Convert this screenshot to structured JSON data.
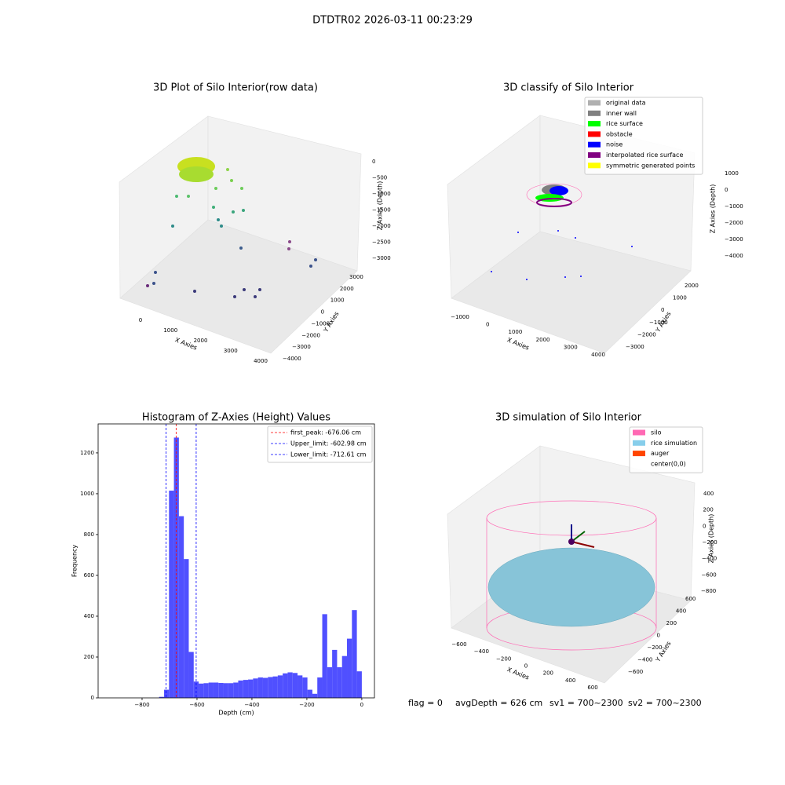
{
  "title": "DTDTR02 2026-03-11 00:23:29",
  "chart_data": [
    {
      "type": "scatter3d",
      "title": "3D Plot of Silo Interior(row data)",
      "xlabel": "X Axies",
      "ylabel": "Y Axies",
      "zlabel": "Z Axies (Depth)",
      "xticks": [
        0,
        1000,
        2000,
        3000,
        4000
      ],
      "yticks": [
        {
          "value": -4000,
          "label": "−4000"
        },
        {
          "value": -3000,
          "label": "−3000"
        },
        {
          "value": -2000,
          "label": "−2000"
        },
        {
          "value": -1000,
          "label": "−1000"
        },
        0,
        1000,
        2000,
        3000
      ],
      "zticks": [
        {
          "value": -3000,
          "label": "−3000"
        },
        {
          "value": -2500,
          "label": "−2500"
        },
        {
          "value": -2000,
          "label": "−2000"
        },
        {
          "value": -1500,
          "label": "−1500"
        },
        {
          "value": -1000,
          "label": "−1000"
        },
        {
          "value": -500,
          "label": "−500"
        },
        0
      ]
    },
    {
      "type": "scatter3d",
      "title": "3D classify of Silo Interior",
      "xlabel": "X Axies",
      "ylabel": "Y Axies",
      "zlabel": "Z Axies (Depth)",
      "xticks": [
        {
          "value": -1000,
          "label": "−1000"
        },
        0,
        1000,
        2000,
        3000,
        4000
      ],
      "yticks": [
        {
          "value": -3000,
          "label": "−3000"
        },
        {
          "value": -2000,
          "label": "−2000"
        },
        {
          "value": -1000,
          "label": "−1000"
        },
        0,
        1000,
        2000
      ],
      "zticks": [
        {
          "value": -4000,
          "label": "−4000"
        },
        {
          "value": -3000,
          "label": "−3000"
        },
        {
          "value": -2000,
          "label": "−2000"
        },
        {
          "value": -1000,
          "label": "−1000"
        },
        0,
        1000
      ],
      "legend": [
        {
          "name": "original data",
          "color": "#b0b0b0"
        },
        {
          "name": "inner wall",
          "color": "#808080"
        },
        {
          "name": "rice surface",
          "color": "#00ff00"
        },
        {
          "name": "obstacle",
          "color": "#ff0000"
        },
        {
          "name": "noise",
          "color": "#0000ff"
        },
        {
          "name": "interpolated rice surface",
          "color": "#800080"
        },
        {
          "name": "symmetric generated points",
          "color": "#ffff00"
        }
      ]
    },
    {
      "type": "histogram",
      "title": "Histogram of Z-Axies (Height) Values",
      "xlabel": "Depth (cm)",
      "ylabel": "Frequency",
      "color": "#5050ff",
      "bins": [
        -738,
        -720,
        -702,
        -684,
        -666,
        -648,
        -630,
        -612,
        -594,
        -576,
        -558,
        -540,
        -522,
        -504,
        -486,
        -468,
        -450,
        -432,
        -414,
        -396,
        -378,
        -360,
        -342,
        -324,
        -306,
        -288,
        -270,
        -252,
        -234,
        -216,
        -198,
        -180,
        -162,
        -144,
        -126,
        -108,
        -90,
        -72,
        -54,
        -36,
        -18,
        0
      ],
      "counts": [
        5,
        40,
        1015,
        1275,
        890,
        680,
        225,
        80,
        70,
        72,
        75,
        75,
        73,
        72,
        72,
        75,
        85,
        88,
        90,
        95,
        100,
        98,
        102,
        105,
        110,
        120,
        125,
        122,
        110,
        100,
        40,
        20,
        100,
        410,
        150,
        235,
        150,
        205,
        290,
        430,
        130
      ],
      "xlim": [
        -960,
        46
      ],
      "ylim": [
        0,
        1342
      ],
      "xticks": [
        {
          "value": -800,
          "label": "−800"
        },
        {
          "value": -600,
          "label": "−600"
        },
        {
          "value": -400,
          "label": "−400"
        },
        {
          "value": -200,
          "label": "−200"
        },
        0
      ],
      "yticks": [
        0,
        200,
        400,
        600,
        800,
        1000,
        1200
      ],
      "legend_loc": "upper right",
      "vlines": [
        {
          "label": "first_peak: -676.06 cm",
          "value": -676.06,
          "color": "#ff0000"
        },
        {
          "label": "Upper_limit: -602.98 cm",
          "value": -602.98,
          "color": "#0000ff"
        },
        {
          "label": "Lower_limit: -712.61 cm",
          "value": -712.61,
          "color": "#0000ff"
        }
      ]
    },
    {
      "type": "scatter3d",
      "title": "3D simulation of Silo Interior",
      "xlabel": "X Axies",
      "ylabel": "Y Axies",
      "zlabel": "Z Axies (Depth)",
      "xticks": [
        {
          "value": -600,
          "label": "−600"
        },
        {
          "value": -400,
          "label": "−400"
        },
        {
          "value": -200,
          "label": "−200"
        },
        0,
        200,
        400,
        600
      ],
      "yticks": [
        {
          "value": -600,
          "label": "−600"
        },
        {
          "value": -400,
          "label": "−400"
        },
        {
          "value": -200,
          "label": "−200"
        },
        0,
        200,
        400,
        600
      ],
      "zticks": [
        {
          "value": -800,
          "label": "−800"
        },
        {
          "value": -600,
          "label": "−600"
        },
        {
          "value": -400,
          "label": "−400"
        },
        {
          "value": -200,
          "label": "−200"
        },
        0,
        200,
        400
      ],
      "legend": [
        {
          "name": "silo",
          "color": "#ff69b4"
        },
        {
          "name": "rice simulation",
          "color": "#87ceeb"
        },
        {
          "name": "auger",
          "color": "#ff4500"
        },
        {
          "name": "center(0,0)",
          "color": "#ffffff"
        }
      ]
    }
  ],
  "footer": [
    "flag = 0",
    "avgDepth = 626 cm",
    "sv1 = 700~2300",
    "sv2 = 700~2300"
  ]
}
